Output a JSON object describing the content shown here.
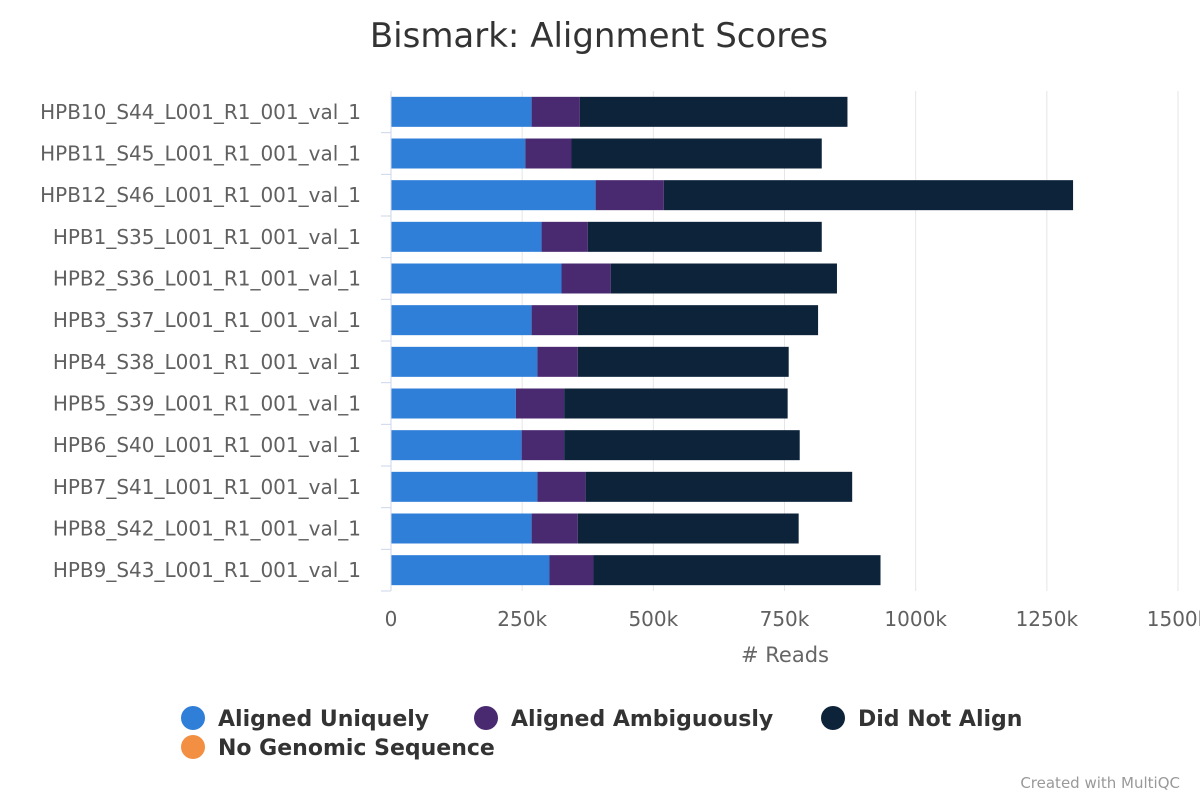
{
  "chart_data": {
    "type": "bar",
    "orientation": "horizontal",
    "stacked": true,
    "title": "Bismark: Alignment Scores",
    "xlabel": "# Reads",
    "ylabel": "",
    "xlim": [
      0,
      1500000
    ],
    "ticks": [
      0,
      250000,
      500000,
      750000,
      1000000,
      1250000,
      1500000
    ],
    "tick_labels": [
      "0",
      "250k",
      "500k",
      "750k",
      "1000k",
      "1250k",
      "1500k"
    ],
    "grid": true,
    "legend_position": "bottom",
    "categories": [
      "HPB10_S44_L001_R1_001_val_1",
      "HPB11_S45_L001_R1_001_val_1",
      "HPB12_S46_L001_R1_001_val_1",
      "HPB1_S35_L001_R1_001_val_1",
      "HPB2_S36_L001_R1_001_val_1",
      "HPB3_S37_L001_R1_001_val_1",
      "HPB4_S38_L001_R1_001_val_1",
      "HPB5_S39_L001_R1_001_val_1",
      "HPB6_S40_L001_R1_001_val_1",
      "HPB7_S41_L001_R1_001_val_1",
      "HPB8_S42_L001_R1_001_val_1",
      "HPB9_S43_L001_R1_001_val_1"
    ],
    "series": [
      {
        "name": "Aligned Uniquely",
        "color": "#2f7ed8",
        "values": [
          268000,
          256000,
          390000,
          287000,
          325000,
          268000,
          279000,
          238000,
          249000,
          279000,
          268000,
          302000
        ]
      },
      {
        "name": "Aligned Ambiguously",
        "color": "#492970",
        "values": [
          92000,
          88000,
          130000,
          88000,
          94000,
          88000,
          77000,
          92000,
          81000,
          92000,
          88000,
          84000
        ]
      },
      {
        "name": "Did Not Align",
        "color": "#0d233a",
        "values": [
          510000,
          477000,
          780000,
          446000,
          431000,
          458000,
          402000,
          426000,
          449000,
          508000,
          421000,
          547000
        ]
      },
      {
        "name": "No Genomic Sequence",
        "color": "#f28f43",
        "values": [
          0,
          0,
          0,
          0,
          0,
          0,
          0,
          0,
          0,
          0,
          0,
          0
        ]
      }
    ]
  },
  "credits": "Created with MultiQC"
}
